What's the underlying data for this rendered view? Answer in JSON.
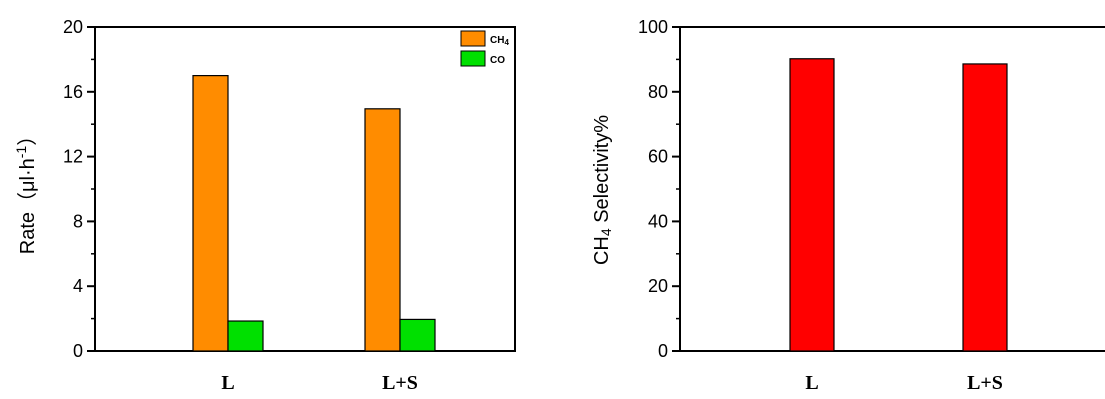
{
  "chart_data": [
    {
      "type": "bar",
      "categories": [
        "L",
        "L+S"
      ],
      "series": [
        {
          "name": "CH4",
          "values": [
            17.0,
            14.95
          ],
          "color": "#FF8C00"
        },
        {
          "name": "CO",
          "values": [
            1.85,
            1.95
          ],
          "color": "#00E000"
        }
      ],
      "legend_labels": {
        "s0_main": "CH",
        "s0_sub": "4",
        "s1_main": "CO"
      },
      "ylabel_main": "Rate（μl·h",
      "ylabel_sup": "-1",
      "ylabel_close": "）",
      "ylim": [
        0,
        20
      ],
      "yticks": [
        "0",
        "4",
        "8",
        "12",
        "16",
        "20"
      ],
      "legend_position": "top-right",
      "grid": false
    },
    {
      "type": "bar",
      "categories": [
        "L",
        "L+S"
      ],
      "series": [
        {
          "values": [
            90.2,
            88.6
          ],
          "color": "#FF0000"
        }
      ],
      "ylabel_main": "CH",
      "ylabel_sub": "4",
      "ylabel_rest": " Selectivity%",
      "ylim": [
        0,
        100
      ],
      "yticks": [
        "0",
        "20",
        "40",
        "60",
        "80",
        "100"
      ],
      "grid": false
    }
  ]
}
